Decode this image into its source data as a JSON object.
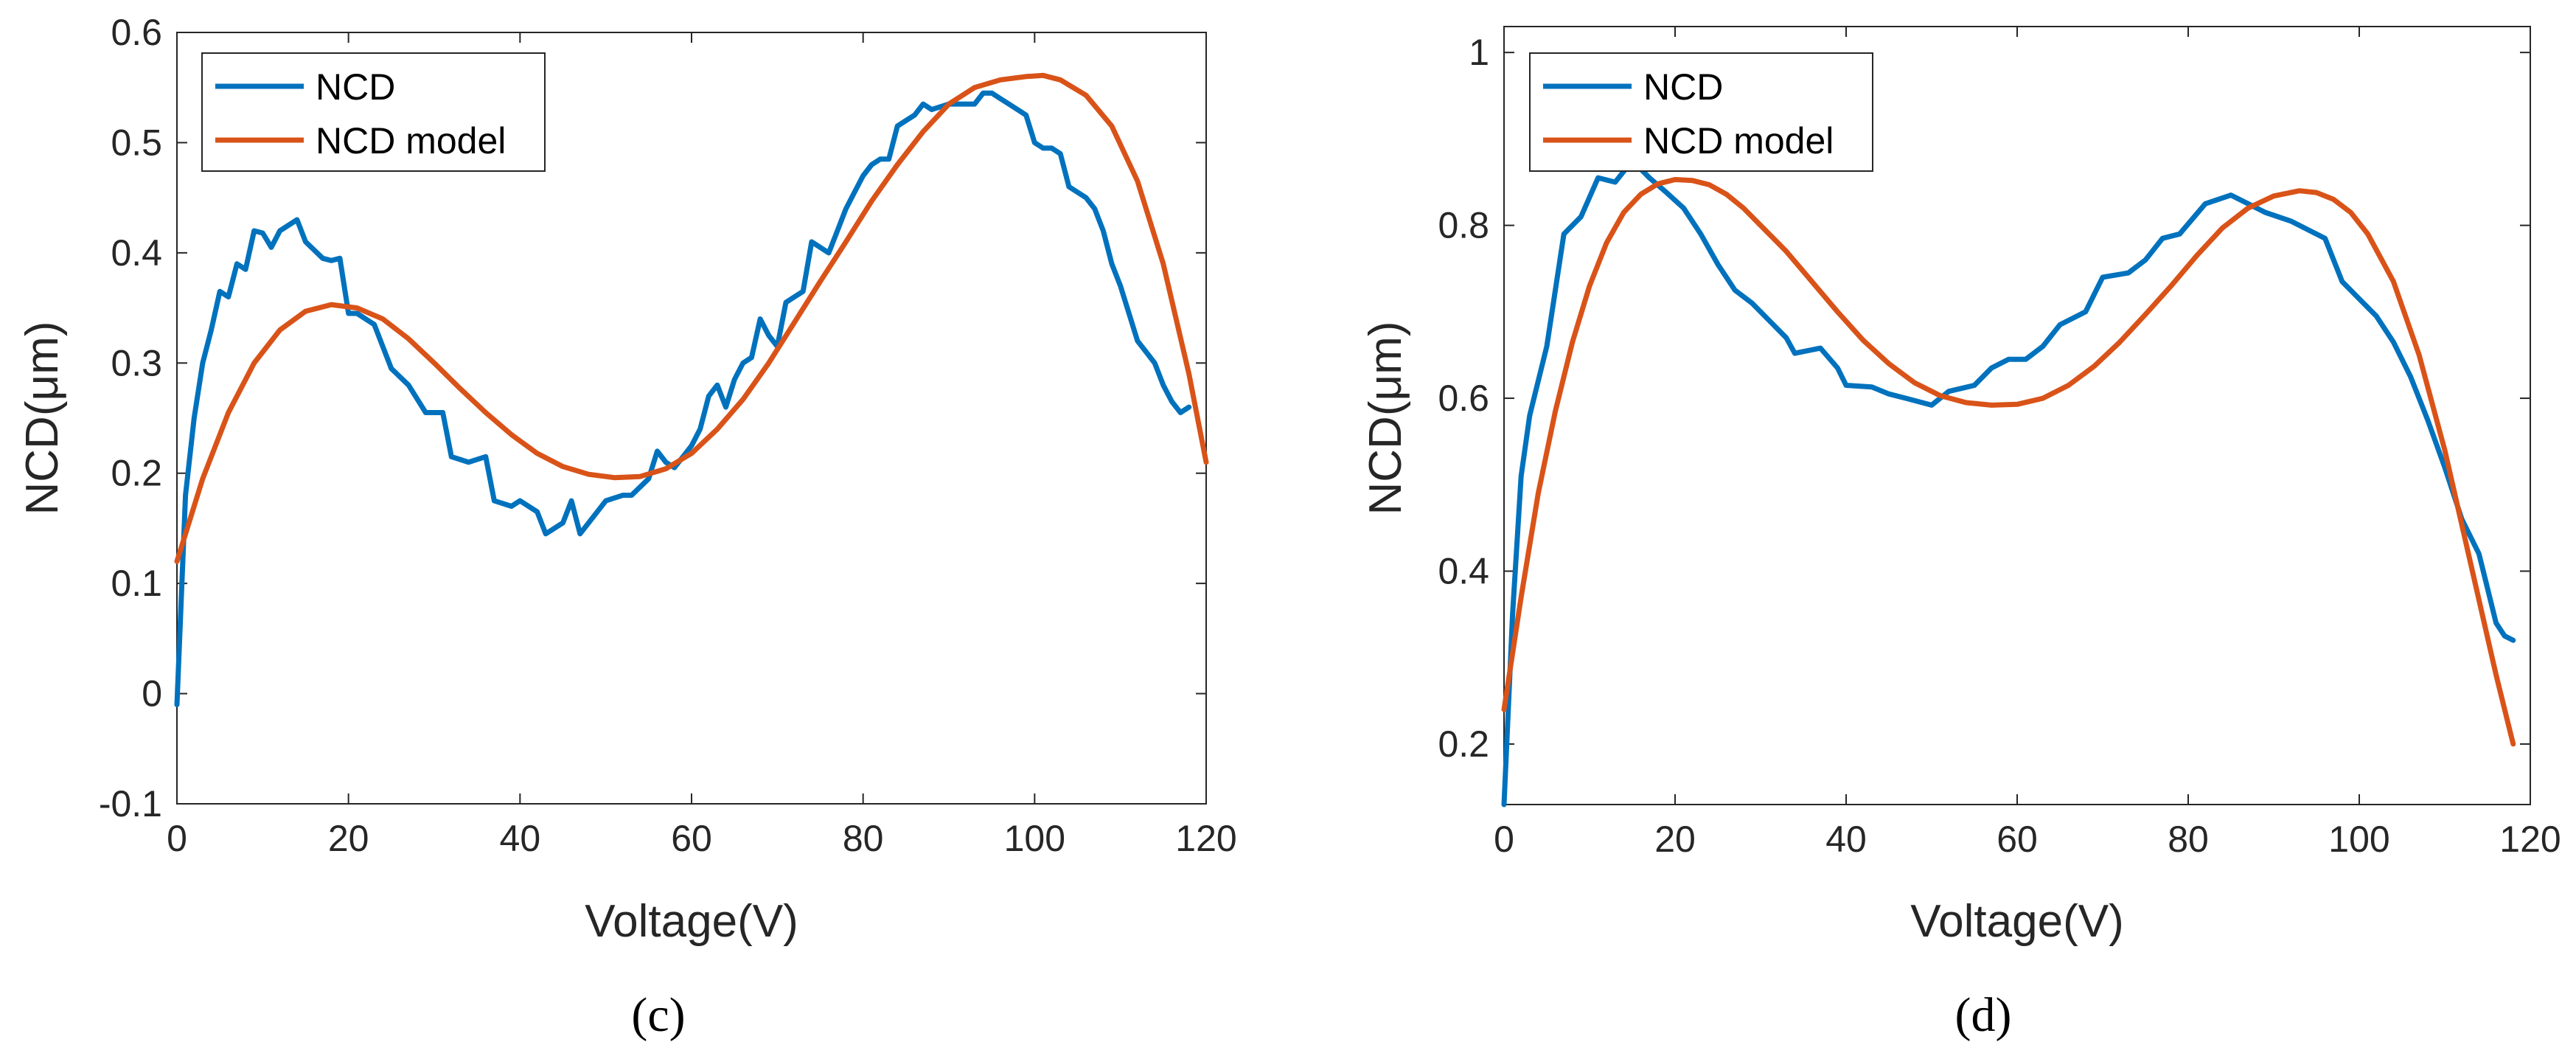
{
  "chart_data": [
    {
      "type": "line",
      "panel_label": "(c)",
      "xlabel": "Voltage(V)",
      "ylabel": "NCD(μm)",
      "xlim": [
        0,
        120
      ],
      "ylim": [
        -0.1,
        0.6
      ],
      "xticks": [
        0,
        20,
        40,
        60,
        80,
        100,
        120
      ],
      "yticks": [
        -0.1,
        0,
        0.1,
        0.2,
        0.3,
        0.4,
        0.5,
        0.6
      ],
      "ytick_labels": [
        "-0.1",
        "0",
        "0.1",
        "0.2",
        "0.3",
        "0.4",
        "0.5",
        "0.6"
      ],
      "grid": false,
      "legend_position": "top-left",
      "series": [
        {
          "name": "NCD",
          "color": "#0072BD",
          "points": [
            [
              0,
              -0.01
            ],
            [
              1,
              0.18
            ],
            [
              2,
              0.25
            ],
            [
              3,
              0.3
            ],
            [
              4,
              0.33
            ],
            [
              5,
              0.365
            ],
            [
              6,
              0.36
            ],
            [
              7,
              0.39
            ],
            [
              8,
              0.385
            ],
            [
              9,
              0.42
            ],
            [
              10,
              0.418
            ],
            [
              11,
              0.405
            ],
            [
              12,
              0.42
            ],
            [
              13,
              0.425
            ],
            [
              14,
              0.43
            ],
            [
              15,
              0.41
            ],
            [
              17,
              0.395
            ],
            [
              18,
              0.393
            ],
            [
              19,
              0.395
            ],
            [
              20,
              0.345
            ],
            [
              21,
              0.345
            ],
            [
              23,
              0.335
            ],
            [
              25,
              0.295
            ],
            [
              27,
              0.28
            ],
            [
              29,
              0.255
            ],
            [
              31,
              0.255
            ],
            [
              32,
              0.215
            ],
            [
              34,
              0.21
            ],
            [
              36,
              0.215
            ],
            [
              37,
              0.175
            ],
            [
              39,
              0.17
            ],
            [
              40,
              0.175
            ],
            [
              42,
              0.165
            ],
            [
              43,
              0.145
            ],
            [
              45,
              0.155
            ],
            [
              46,
              0.175
            ],
            [
              47,
              0.145
            ],
            [
              48,
              0.155
            ],
            [
              50,
              0.175
            ],
            [
              52,
              0.18
            ],
            [
              53,
              0.18
            ],
            [
              55,
              0.195
            ],
            [
              56,
              0.22
            ],
            [
              57,
              0.21
            ],
            [
              58,
              0.205
            ],
            [
              59,
              0.215
            ],
            [
              60,
              0.225
            ],
            [
              61,
              0.24
            ],
            [
              62,
              0.27
            ],
            [
              63,
              0.28
            ],
            [
              64,
              0.26
            ],
            [
              65,
              0.285
            ],
            [
              66,
              0.3
            ],
            [
              67,
              0.305
            ],
            [
              68,
              0.34
            ],
            [
              69,
              0.325
            ],
            [
              70,
              0.315
            ],
            [
              71,
              0.355
            ],
            [
              72,
              0.36
            ],
            [
              73,
              0.365
            ],
            [
              74,
              0.41
            ],
            [
              76,
              0.4
            ],
            [
              77,
              0.42
            ],
            [
              78,
              0.44
            ],
            [
              79,
              0.455
            ],
            [
              80,
              0.47
            ],
            [
              81,
              0.48
            ],
            [
              82,
              0.485
            ],
            [
              83,
              0.485
            ],
            [
              84,
              0.515
            ],
            [
              85,
              0.52
            ],
            [
              86,
              0.525
            ],
            [
              87,
              0.535
            ],
            [
              88,
              0.53
            ],
            [
              90,
              0.535
            ],
            [
              91,
              0.535
            ],
            [
              93,
              0.535
            ],
            [
              94,
              0.545
            ],
            [
              95,
              0.545
            ],
            [
              96,
              0.54
            ],
            [
              97,
              0.535
            ],
            [
              98,
              0.53
            ],
            [
              99,
              0.525
            ],
            [
              100,
              0.5
            ],
            [
              101,
              0.495
            ],
            [
              102,
              0.495
            ],
            [
              103,
              0.49
            ],
            [
              104,
              0.46
            ],
            [
              105,
              0.455
            ],
            [
              106,
              0.45
            ],
            [
              107,
              0.44
            ],
            [
              108,
              0.42
            ],
            [
              109,
              0.39
            ],
            [
              110,
              0.37
            ],
            [
              111,
              0.345
            ],
            [
              112,
              0.32
            ],
            [
              113,
              0.31
            ],
            [
              114,
              0.3
            ],
            [
              115,
              0.28
            ],
            [
              116,
              0.265
            ],
            [
              117,
              0.255
            ],
            [
              118,
              0.26
            ]
          ]
        },
        {
          "name": "NCD model",
          "color": "#D95319",
          "points": [
            [
              0,
              0.12
            ],
            [
              3,
              0.195
            ],
            [
              6,
              0.255
            ],
            [
              9,
              0.3
            ],
            [
              12,
              0.33
            ],
            [
              15,
              0.347
            ],
            [
              18,
              0.353
            ],
            [
              21,
              0.35
            ],
            [
              24,
              0.34
            ],
            [
              27,
              0.322
            ],
            [
              30,
              0.3
            ],
            [
              33,
              0.277
            ],
            [
              36,
              0.255
            ],
            [
              39,
              0.235
            ],
            [
              42,
              0.218
            ],
            [
              45,
              0.206
            ],
            [
              48,
              0.199
            ],
            [
              51,
              0.196
            ],
            [
              54,
              0.197
            ],
            [
              57,
              0.204
            ],
            [
              60,
              0.218
            ],
            [
              63,
              0.24
            ],
            [
              66,
              0.267
            ],
            [
              69,
              0.3
            ],
            [
              72,
              0.337
            ],
            [
              75,
              0.374
            ],
            [
              78,
              0.41
            ],
            [
              81,
              0.447
            ],
            [
              84,
              0.48
            ],
            [
              87,
              0.51
            ],
            [
              90,
              0.535
            ],
            [
              93,
              0.55
            ],
            [
              96,
              0.557
            ],
            [
              99,
              0.56
            ],
            [
              101,
              0.561
            ],
            [
              103,
              0.557
            ],
            [
              106,
              0.543
            ],
            [
              109,
              0.515
            ],
            [
              112,
              0.465
            ],
            [
              115,
              0.39
            ],
            [
              118,
              0.29
            ],
            [
              120,
              0.21
            ]
          ]
        }
      ]
    },
    {
      "type": "line",
      "panel_label": "(d)",
      "xlabel": "Voltage(V)",
      "ylabel": "NCD(μm)",
      "xlim": [
        0,
        120
      ],
      "ylim": [
        0.13,
        1.03
      ],
      "xticks": [
        0,
        20,
        40,
        60,
        80,
        100,
        120
      ],
      "yticks": [
        0.2,
        0.4,
        0.6,
        0.8,
        1.0
      ],
      "ytick_labels": [
        "0.2",
        "0.4",
        "0.6",
        "0.8",
        "1"
      ],
      "grid": false,
      "legend_position": "top-left",
      "series": [
        {
          "name": "NCD",
          "color": "#0072BD",
          "points": [
            [
              0,
              0.13
            ],
            [
              1,
              0.35
            ],
            [
              2,
              0.51
            ],
            [
              3,
              0.58
            ],
            [
              5,
              0.66
            ],
            [
              7,
              0.79
            ],
            [
              9,
              0.81
            ],
            [
              11,
              0.855
            ],
            [
              13,
              0.85
            ],
            [
              15,
              0.875
            ],
            [
              17,
              0.855
            ],
            [
              19,
              0.838
            ],
            [
              21,
              0.82
            ],
            [
              23,
              0.79
            ],
            [
              25,
              0.755
            ],
            [
              27,
              0.725
            ],
            [
              29,
              0.71
            ],
            [
              31,
              0.69
            ],
            [
              33,
              0.67
            ],
            [
              34,
              0.652
            ],
            [
              37,
              0.658
            ],
            [
              39,
              0.635
            ],
            [
              40,
              0.615
            ],
            [
              43,
              0.613
            ],
            [
              45,
              0.605
            ],
            [
              47,
              0.6
            ],
            [
              50,
              0.592
            ],
            [
              52,
              0.608
            ],
            [
              55,
              0.615
            ],
            [
              57,
              0.635
            ],
            [
              59,
              0.645
            ],
            [
              61,
              0.645
            ],
            [
              63,
              0.66
            ],
            [
              65,
              0.685
            ],
            [
              68,
              0.7
            ],
            [
              70,
              0.74
            ],
            [
              73,
              0.745
            ],
            [
              75,
              0.76
            ],
            [
              77,
              0.785
            ],
            [
              79,
              0.79
            ],
            [
              82,
              0.825
            ],
            [
              85,
              0.835
            ],
            [
              87,
              0.825
            ],
            [
              89,
              0.815
            ],
            [
              92,
              0.805
            ],
            [
              94,
              0.795
            ],
            [
              96,
              0.785
            ],
            [
              98,
              0.735
            ],
            [
              100,
              0.715
            ],
            [
              102,
              0.695
            ],
            [
              104,
              0.665
            ],
            [
              106,
              0.625
            ],
            [
              108,
              0.575
            ],
            [
              110,
              0.52
            ],
            [
              112,
              0.46
            ],
            [
              114,
              0.42
            ],
            [
              115,
              0.38
            ],
            [
              116,
              0.34
            ],
            [
              117,
              0.325
            ],
            [
              118,
              0.32
            ]
          ]
        },
        {
          "name": "NCD model",
          "color": "#D95319",
          "points": [
            [
              0,
              0.24
            ],
            [
              2,
              0.37
            ],
            [
              4,
              0.49
            ],
            [
              6,
              0.585
            ],
            [
              8,
              0.665
            ],
            [
              10,
              0.73
            ],
            [
              12,
              0.78
            ],
            [
              14,
              0.815
            ],
            [
              16,
              0.836
            ],
            [
              18,
              0.848
            ],
            [
              20,
              0.853
            ],
            [
              22,
              0.852
            ],
            [
              24,
              0.847
            ],
            [
              26,
              0.836
            ],
            [
              28,
              0.82
            ],
            [
              30,
              0.8
            ],
            [
              33,
              0.77
            ],
            [
              36,
              0.735
            ],
            [
              39,
              0.7
            ],
            [
              42,
              0.667
            ],
            [
              45,
              0.64
            ],
            [
              48,
              0.618
            ],
            [
              51,
              0.603
            ],
            [
              54,
              0.595
            ],
            [
              57,
              0.592
            ],
            [
              60,
              0.593
            ],
            [
              63,
              0.6
            ],
            [
              66,
              0.615
            ],
            [
              69,
              0.637
            ],
            [
              72,
              0.665
            ],
            [
              75,
              0.697
            ],
            [
              78,
              0.73
            ],
            [
              81,
              0.765
            ],
            [
              84,
              0.797
            ],
            [
              87,
              0.82
            ],
            [
              90,
              0.834
            ],
            [
              93,
              0.84
            ],
            [
              95,
              0.838
            ],
            [
              97,
              0.83
            ],
            [
              99,
              0.815
            ],
            [
              101,
              0.79
            ],
            [
              104,
              0.735
            ],
            [
              107,
              0.65
            ],
            [
              110,
              0.54
            ],
            [
              113,
              0.41
            ],
            [
              116,
              0.28
            ],
            [
              118,
              0.2
            ]
          ]
        }
      ]
    }
  ]
}
